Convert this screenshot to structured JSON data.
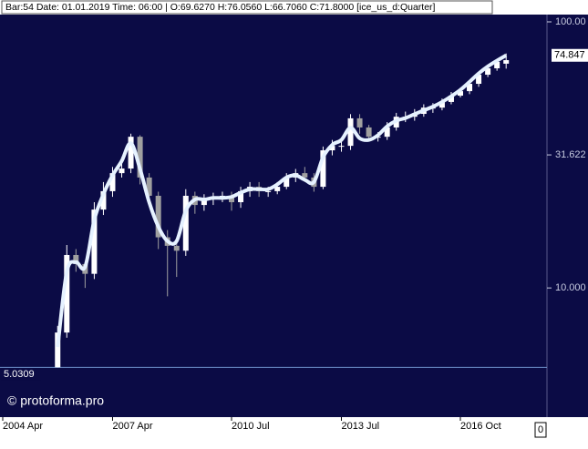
{
  "chart_data": {
    "type": "candlestick",
    "header": "Bar:54 Date: 01.01.2019 Time: 06:00 | O:69.6270 H:76.0560 L:66.7060 C:71.8000 [ice_us_d:Quarter]",
    "watermark": "© protoforma.pro",
    "log_scale": true,
    "ylim": [
      3.27,
      106.5
    ],
    "yticks": [
      {
        "value": 100,
        "label": "100.00"
      },
      {
        "value": 31.622,
        "label": "31.622"
      },
      {
        "value": 10,
        "label": "10.000"
      }
    ],
    "hline": 5.0309,
    "corner_label": 0,
    "up_color": "#ffffff",
    "down_color": "#a0a0a0",
    "categories": [
      "2004 Apr",
      null,
      null,
      null,
      null,
      null,
      null,
      null,
      null,
      null,
      null,
      null,
      "2007 Apr",
      null,
      null,
      null,
      null,
      null,
      null,
      null,
      null,
      null,
      null,
      null,
      null,
      "2010 Jul",
      null,
      null,
      null,
      null,
      null,
      null,
      null,
      null,
      null,
      null,
      null,
      "2013 Jul",
      null,
      null,
      null,
      null,
      null,
      null,
      null,
      null,
      null,
      null,
      null,
      null,
      "2016 Oct",
      null,
      null,
      null,
      null,
      null
    ],
    "series": [
      {
        "name": "open",
        "values": [
          null,
          null,
          null,
          null,
          null,
          null,
          5.03,
          6.8,
          13.3,
          12.3,
          11.3,
          19.7,
          23.1,
          27.0,
          28.1,
          37.0,
          26.0,
          22.2,
          15.5,
          14.4,
          13.8,
          22.2,
          20.5,
          21.7,
          21.7,
          22.2,
          21.0,
          23.1,
          24.0,
          23.1,
          23.1,
          24.0,
          26.0,
          27.0,
          26.0,
          24.0,
          32.9,
          34.2,
          34.2,
          43.4,
          40.1,
          37.0,
          37.0,
          40.1,
          44.0,
          44.0,
          45.1,
          47.6,
          47.6,
          50.0,
          52.8,
          54.9,
          58.5,
          63.3,
          66.9,
          69.627
        ]
      },
      {
        "name": "high",
        "values": [
          null,
          null,
          null,
          null,
          null,
          null,
          7.2,
          14.5,
          14.0,
          12.5,
          21.0,
          25.0,
          28.5,
          31.0,
          38.0,
          37.5,
          27.0,
          23.0,
          16.5,
          15.0,
          23.5,
          23.0,
          22.5,
          22.8,
          23.0,
          23.0,
          24.0,
          25.0,
          25.0,
          24.0,
          25.0,
          27.0,
          28.0,
          28.5,
          27.0,
          34.0,
          36.0,
          36.0,
          45.0,
          45.0,
          41.0,
          38.5,
          42.0,
          45.5,
          46.0,
          47.0,
          49.0,
          49.5,
          51.5,
          54.5,
          56.5,
          60.0,
          65.0,
          68.5,
          72.5,
          76.056
        ]
      },
      {
        "name": "low",
        "values": [
          null,
          null,
          null,
          null,
          null,
          null,
          5.0309,
          6.5,
          11.5,
          10.0,
          10.8,
          18.8,
          22.0,
          26.0,
          27.0,
          24.5,
          21.0,
          14.0,
          9.3,
          11.0,
          13.2,
          19.0,
          19.5,
          20.5,
          21.0,
          19.5,
          20.0,
          22.0,
          22.0,
          22.0,
          22.5,
          23.5,
          25.0,
          25.0,
          23.0,
          23.5,
          31.5,
          32.5,
          33.0,
          38.0,
          35.5,
          35.5,
          36.0,
          39.0,
          42.0,
          42.5,
          44.0,
          45.5,
          46.5,
          49.0,
          52.0,
          53.5,
          57.0,
          62.0,
          65.5,
          66.706
        ]
      },
      {
        "name": "close",
        "values": [
          null,
          null,
          null,
          null,
          null,
          null,
          6.8,
          13.3,
          12.3,
          11.3,
          19.7,
          23.1,
          27.0,
          28.1,
          37.0,
          26.0,
          22.2,
          15.5,
          14.4,
          13.8,
          22.2,
          20.5,
          21.7,
          21.7,
          22.2,
          21.0,
          23.1,
          24.0,
          23.1,
          23.1,
          24.0,
          26.0,
          27.0,
          26.0,
          24.0,
          32.9,
          34.2,
          34.2,
          43.4,
          40.1,
          37.0,
          37.0,
          40.1,
          44.0,
          44.0,
          45.1,
          47.6,
          47.6,
          50.0,
          52.8,
          54.9,
          58.5,
          63.3,
          66.9,
          70.7,
          71.8
        ]
      }
    ],
    "line": {
      "color": "#e6f2ff",
      "values": [
        null,
        null,
        null,
        null,
        null,
        null,
        6.0,
        11.5,
        12.5,
        12.0,
        18.0,
        22.5,
        26.5,
        30.0,
        35.0,
        28.0,
        21.0,
        17.0,
        15.0,
        15.0,
        19.5,
        21.5,
        21.5,
        21.8,
        21.8,
        22.0,
        22.8,
        23.5,
        23.5,
        23.5,
        24.5,
        26.0,
        26.5,
        25.5,
        25.0,
        31.0,
        34.5,
        36.0,
        40.0,
        36.5,
        36.0,
        37.5,
        40.5,
        42.5,
        43.5,
        45.0,
        46.5,
        48.0,
        50.0,
        52.5,
        55.5,
        59.5,
        64.0,
        68.0,
        71.5,
        74.847
      ]
    }
  }
}
